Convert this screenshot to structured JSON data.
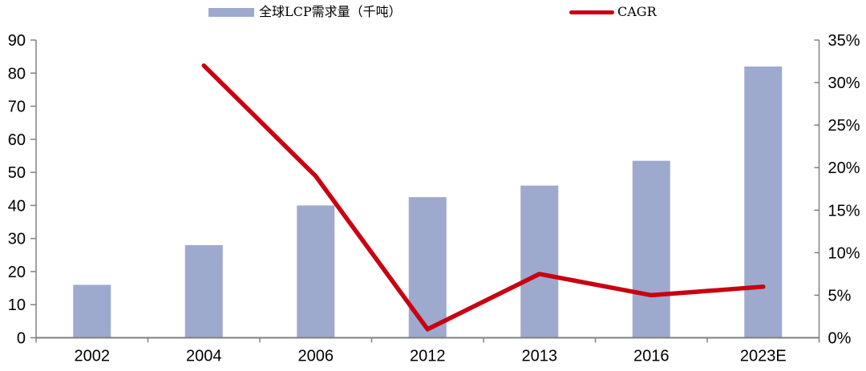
{
  "legend": {
    "bars_label": "全球LCP需求量（千吨）",
    "line_label": "CAGR"
  },
  "chart_data": {
    "type": "combo_bar_line",
    "title": "",
    "categories": [
      "2002",
      "2004",
      "2006",
      "2012",
      "2013",
      "2016",
      "2023E"
    ],
    "series": [
      {
        "name": "全球LCP需求量（千吨）",
        "type": "bar",
        "axis": "left",
        "unit": "千吨",
        "values": [
          16,
          28,
          40,
          42.5,
          46,
          53.5,
          82
        ]
      },
      {
        "name": "CAGR",
        "type": "line",
        "axis": "right",
        "unit": "%",
        "values": [
          null,
          32,
          19,
          1,
          7.5,
          5,
          6
        ]
      }
    ],
    "left_axis": {
      "min": 0,
      "max": 90,
      "step": 10,
      "tick_labels": [
        "0",
        "10",
        "20",
        "30",
        "40",
        "50",
        "60",
        "70",
        "80",
        "90"
      ]
    },
    "right_axis": {
      "min": 0,
      "max": 35,
      "step": 5,
      "tick_labels": [
        "0%",
        "5%",
        "10%",
        "15%",
        "20%",
        "25%",
        "30%",
        "35%"
      ]
    },
    "grid": false,
    "legend_position": "top",
    "colors": {
      "bar": "#9EA9CE",
      "line": "#C80011",
      "axis": "#808080",
      "text": "#000000"
    }
  }
}
